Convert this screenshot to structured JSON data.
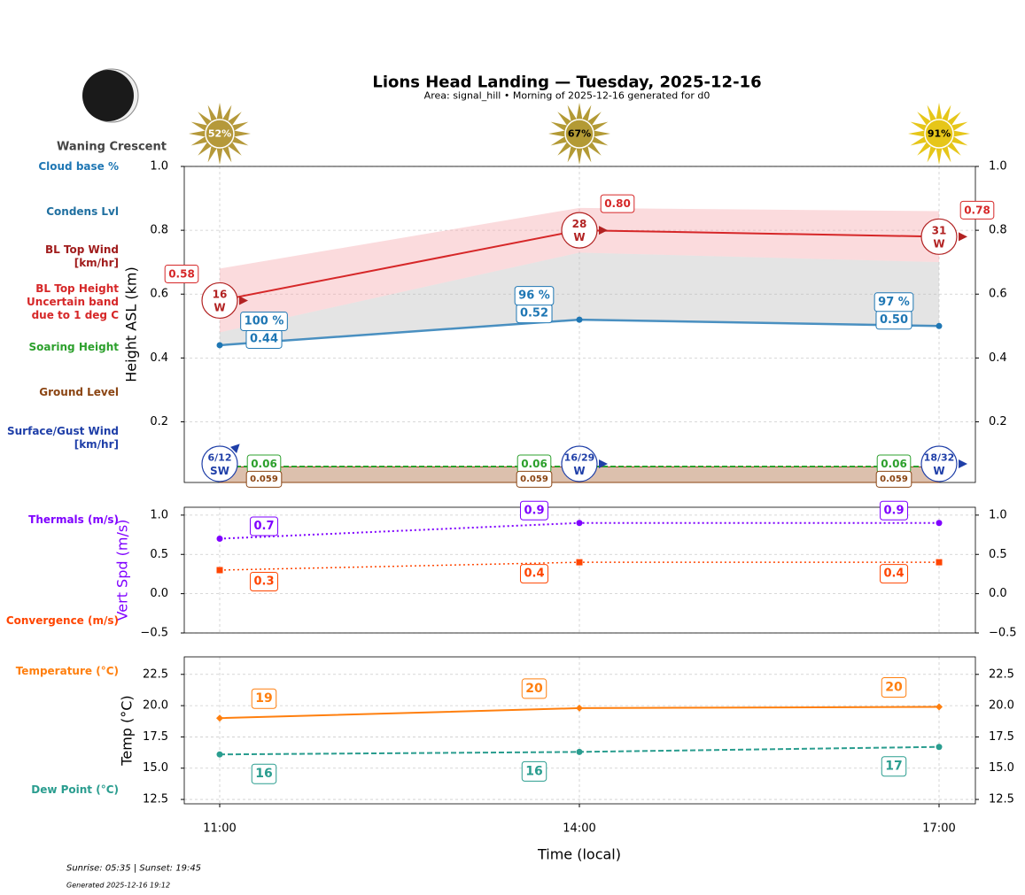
{
  "header": {
    "title": "Lions Head Landing — Tuesday, 2025-12-16",
    "subtitle": "Area: signal_hill • Morning of 2025-12-16 generated for d0"
  },
  "moon": {
    "phase": "Waning Crescent"
  },
  "sun": {
    "values": [
      52,
      67,
      91
    ],
    "value_labels": [
      "52%",
      "67%",
      "91%"
    ],
    "colors": [
      "#b5993a",
      "#b39a35",
      "#e6c619"
    ],
    "label_colors": [
      "#ffffff",
      "#000000",
      "#000000"
    ]
  },
  "chart_data": [
    {
      "type": "line",
      "ylabel": "Height ASL (km)",
      "ylim": [
        0.01,
        1.0
      ],
      "yticks": [
        0.2,
        0.4,
        0.6,
        0.8,
        {
          "value": 1.0,
          "label": "1.0"
        }
      ],
      "grid": true,
      "series": [
        {
          "name": "Cloud base %",
          "color": "#1f77b4",
          "values": [
            100,
            96,
            97
          ],
          "value_labels": [
            "100 %",
            "96 %",
            "97 %"
          ]
        },
        {
          "name": "Condens Lvl",
          "color": "#1f77b4",
          "values": [
            0.44,
            0.52,
            0.5
          ],
          "value_labels": [
            "0.44",
            "0.52",
            "0.50"
          ]
        },
        {
          "name": "BL Top Wind [km/hr]",
          "color": "#b22222",
          "values": [
            16,
            28,
            31
          ],
          "directions": [
            "W",
            "W",
            "W"
          ]
        },
        {
          "name": "BL Top Height Uncertain band due to 1 deg C",
          "color": "#d62728",
          "values": [
            0.58,
            0.8,
            0.78
          ],
          "value_labels": [
            "0.58",
            "0.80",
            "0.78"
          ],
          "band_lower": [
            0.48,
            0.73,
            0.7
          ],
          "band_upper": [
            0.68,
            0.87,
            0.86
          ]
        },
        {
          "name": "Soaring Height",
          "color": "#2ca02c",
          "values": [
            0.06,
            0.06,
            0.06
          ]
        },
        {
          "name": "Ground Level",
          "color": "#8b4513",
          "values": [
            0.059,
            0.059,
            0.059
          ]
        },
        {
          "name": "Surface/Gust Wind [km/hr]",
          "color": "#1f3fa8",
          "values": [
            6,
            16,
            18
          ],
          "gust": [
            12,
            29,
            32
          ],
          "value_labels": [
            "6/12",
            "16/29",
            "18/32"
          ],
          "directions": [
            "SW",
            "W",
            "W"
          ]
        }
      ]
    },
    {
      "type": "line",
      "ylabel": "Vert Spd (m/s)",
      "ylabel_color": "#7f00ff",
      "ylim": [
        -0.5,
        1.1
      ],
      "yticks": [
        {
          "value": -0.5,
          "label": "−0.5"
        },
        {
          "value": 0,
          "label": "0.0"
        },
        0.5,
        {
          "value": 1.0,
          "label": "1.0"
        }
      ],
      "grid": true,
      "series": [
        {
          "name": "Thermals (m/s)",
          "color": "#7f00ff",
          "values": [
            0.7,
            0.9,
            0.9
          ]
        },
        {
          "name": "Convergence (m/s)",
          "color": "#ff4500",
          "values": [
            0.3,
            0.4,
            0.4
          ]
        }
      ]
    },
    {
      "type": "line",
      "ylabel": "Temp (°C)",
      "xlabel": "Time (local)",
      "categories": [
        "11:00",
        "14:00",
        "17:00"
      ],
      "ylim": [
        12.15,
        23.9
      ],
      "yticks": [
        12.5,
        {
          "value": 15,
          "label": "15.0"
        },
        17.5,
        {
          "value": 20,
          "label": "20.0"
        },
        22.5
      ],
      "grid": true,
      "series": [
        {
          "name": "Temperature (°C)",
          "color": "#ff7f0e",
          "values": [
            19.0,
            19.8,
            19.9
          ],
          "value_labels": [
            "19",
            "20",
            "20"
          ]
        },
        {
          "name": "Dew Point (°C)",
          "color": "#2a9d8f",
          "values": [
            16.1,
            16.3,
            16.7
          ],
          "value_labels": [
            "16",
            "16",
            "17"
          ]
        }
      ]
    }
  ],
  "footer": {
    "sun_times": "Sunrise: 05:35 | Sunset: 19:45",
    "generated": "Generated 2025-12-16 19:12"
  }
}
